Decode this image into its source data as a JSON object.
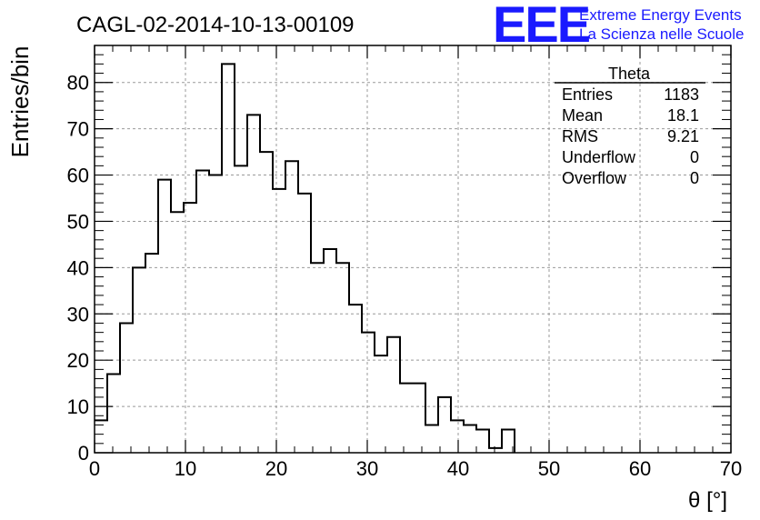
{
  "header": {
    "run_title": "CAGL-02-2014-10-13-00109",
    "logo": "EEE",
    "logo_line1": "Extreme Energy Events",
    "logo_line2": "La Scienza nelle Scuole"
  },
  "stats": {
    "title": "Theta",
    "rows": [
      {
        "label": "Entries",
        "value": "1183"
      },
      {
        "label": "Mean",
        "value": "18.1"
      },
      {
        "label": "RMS",
        "value": "9.21"
      },
      {
        "label": "Underflow",
        "value": "0"
      },
      {
        "label": "Overflow",
        "value": "0"
      }
    ]
  },
  "chart_data": {
    "type": "bar",
    "histogram": true,
    "xlabel": "θ [°]",
    "ylabel": "Entries/bin",
    "xlim": [
      0,
      70
    ],
    "ylim": [
      0,
      88
    ],
    "grid": true,
    "bin_width": 1.4,
    "x_ticks": [
      0,
      10,
      20,
      30,
      40,
      50,
      60,
      70
    ],
    "y_ticks": [
      0,
      10,
      20,
      30,
      40,
      50,
      60,
      70,
      80
    ],
    "values": [
      7,
      17,
      28,
      40,
      43,
      59,
      52,
      54,
      61,
      60,
      84,
      62,
      73,
      65,
      57,
      63,
      56,
      41,
      44,
      41,
      32,
      26,
      21,
      25,
      15,
      15,
      6,
      12,
      7,
      6,
      5,
      1,
      5
    ]
  }
}
